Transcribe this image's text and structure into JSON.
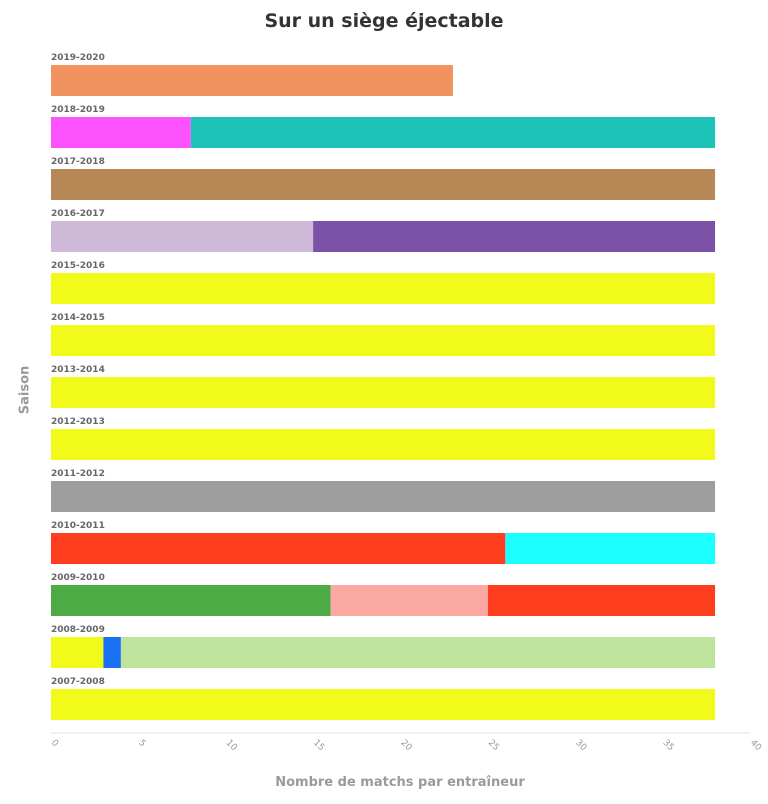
{
  "chart_data": {
    "type": "bar",
    "orientation": "horizontal",
    "stacked": true,
    "title": "Sur un siège éjectable",
    "xlabel": "Nombre de matchs par entraîneur",
    "ylabel": "Saison",
    "xlim": [
      0,
      40
    ],
    "xticks": [
      0,
      5,
      10,
      15,
      20,
      25,
      30,
      35,
      40
    ],
    "grid": false,
    "legend": "none",
    "categories": [
      "2019-2020",
      "2018-2019",
      "2017-2018",
      "2016-2017",
      "2015-2016",
      "2014-2015",
      "2013-2014",
      "2012-2013",
      "2011-2012",
      "2010-2011",
      "2009-2010",
      "2008-2009",
      "2007-2008"
    ],
    "segments": [
      [
        {
          "value": 23,
          "color": "#F0935F"
        }
      ],
      [
        {
          "value": 8,
          "color": "#FF52FF"
        },
        {
          "value": 30,
          "color": "#1CC4B8"
        }
      ],
      [
        {
          "value": 38,
          "color": "#B78855"
        }
      ],
      [
        {
          "value": 15,
          "color": "#CFB9D9"
        },
        {
          "value": 23,
          "color": "#7B52A6"
        }
      ],
      [
        {
          "value": 38,
          "color": "#F2FA1C"
        }
      ],
      [
        {
          "value": 38,
          "color": "#F2FA1C"
        }
      ],
      [
        {
          "value": 38,
          "color": "#F2FA1C"
        }
      ],
      [
        {
          "value": 38,
          "color": "#F2FA1C"
        }
      ],
      [
        {
          "value": 38,
          "color": "#9E9E9E"
        }
      ],
      [
        {
          "value": 26,
          "color": "#FF3D1F"
        },
        {
          "value": 12,
          "color": "#1CFFFF"
        }
      ],
      [
        {
          "value": 16,
          "color": "#4CAB45"
        },
        {
          "value": 9,
          "color": "#FBA8A3"
        },
        {
          "value": 13,
          "color": "#FF3D1F"
        }
      ],
      [
        {
          "value": 3,
          "color": "#F2FA1C"
        },
        {
          "value": 1,
          "color": "#1A70F2"
        },
        {
          "value": 34,
          "color": "#BDE39C"
        }
      ],
      [
        {
          "value": 38,
          "color": "#F2FA1C"
        }
      ]
    ]
  }
}
